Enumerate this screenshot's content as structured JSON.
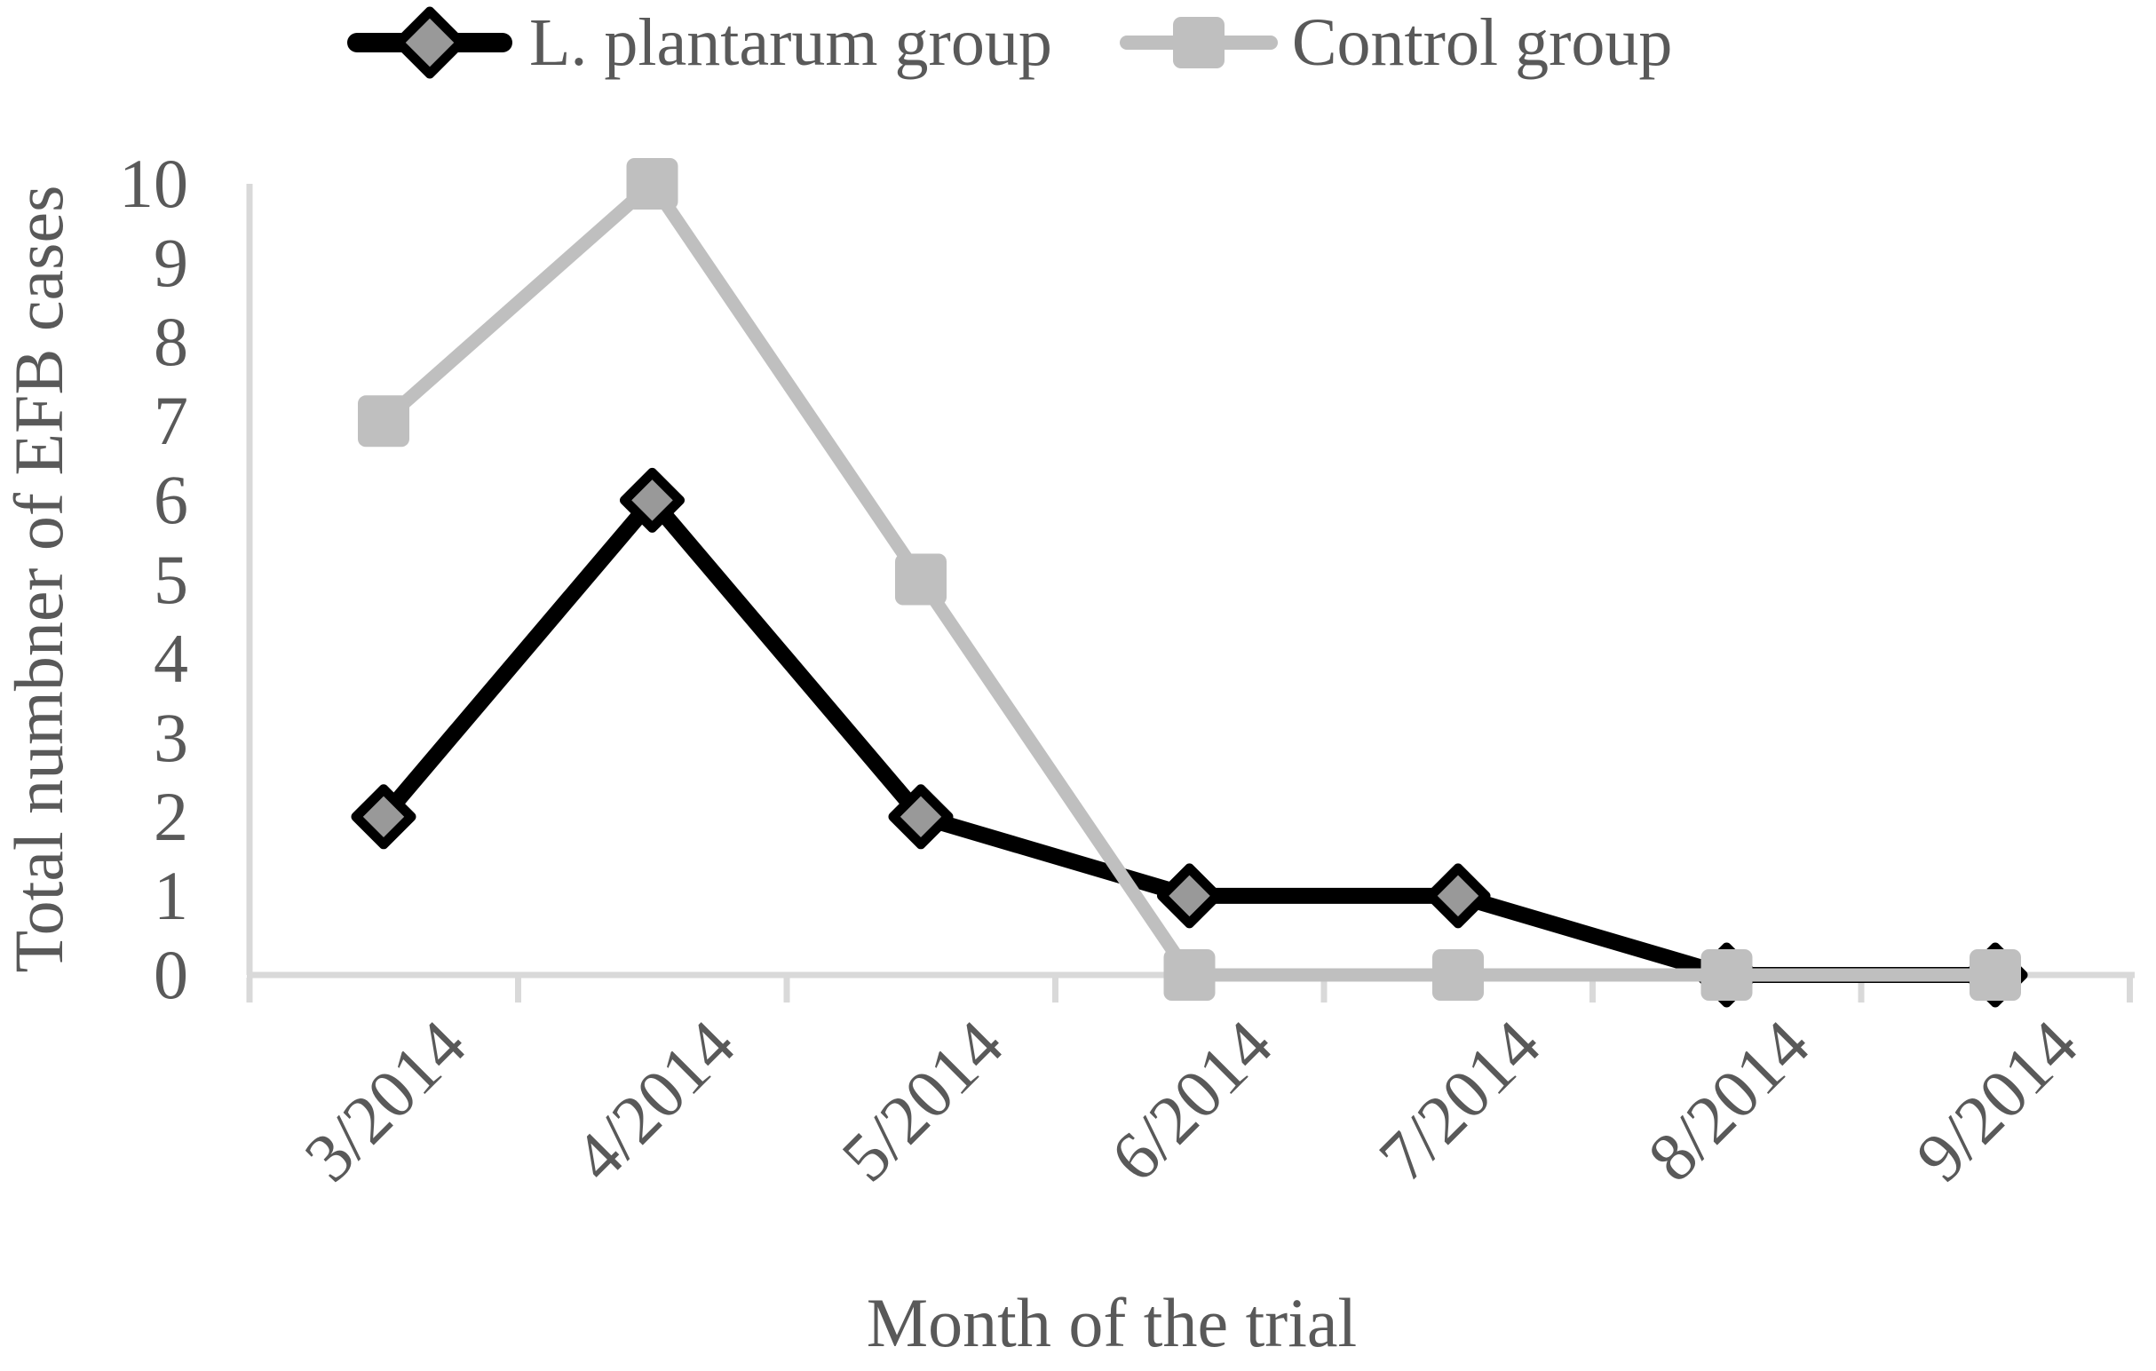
{
  "chart_data": {
    "type": "line",
    "title": "",
    "categories": [
      "3/2014",
      "4/2014",
      "5/2014",
      "6/2014",
      "7/2014",
      "8/2014",
      "9/2014"
    ],
    "series": [
      {
        "name": "L. plantarum group",
        "values": [
          2,
          6,
          2,
          1,
          1,
          0,
          0
        ],
        "color": "#000000",
        "marker": "diamond",
        "marker_fill": "#999999"
      },
      {
        "name": "Control group",
        "values": [
          7,
          10,
          5,
          0,
          0,
          0,
          0
        ],
        "color": "#bfbfbf",
        "marker": "square",
        "marker_fill": "#bfbfbf"
      }
    ],
    "xlabel": "Month of the trial",
    "ylabel": "Total numbner of EFB cases",
    "ylim": [
      0,
      10
    ],
    "yticks": [
      0,
      1,
      2,
      3,
      4,
      5,
      6,
      7,
      8,
      9,
      10
    ],
    "grid": false,
    "legend_position": "top",
    "axis_color": "#d9d9d9",
    "text_color": "#595959",
    "background_color": "#ffffff"
  }
}
